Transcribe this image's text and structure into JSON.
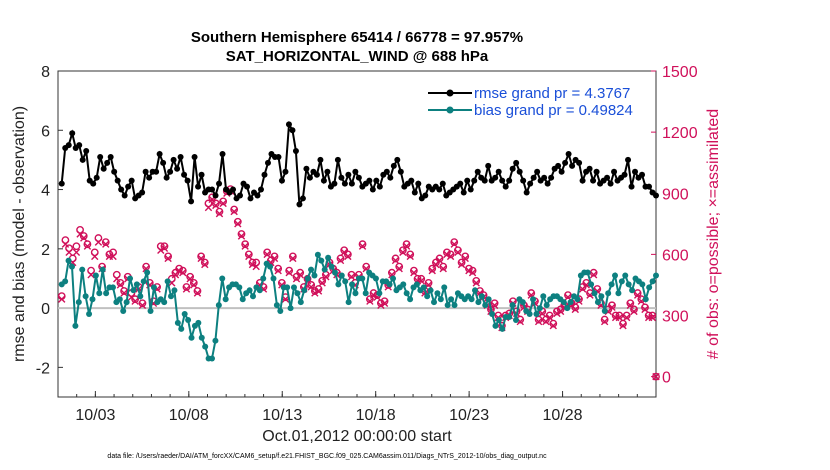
{
  "chart_data": {
    "type": "line",
    "title": "Southern Hemisphere 65414 / 66778 = 97.957%",
    "subtitle": "SAT_HORIZONTAL_WIND @ 688 hPa",
    "xlabel": "Oct.01,2012 00:00:00 start",
    "ylabel": "rmse and bias (model - observation)",
    "ylabel_right": "# of obs: o=possible; ×=assimilated",
    "xlim": [
      1.0,
      33.0
    ],
    "ylim": [
      -3,
      8
    ],
    "ylim_right": [
      -100,
      1500
    ],
    "x_ticks": [
      3,
      8,
      13,
      18,
      23,
      28
    ],
    "x_tick_labels": [
      "10/03",
      "10/08",
      "10/13",
      "10/18",
      "10/23",
      "10/28"
    ],
    "y_ticks": [
      -2,
      0,
      2,
      4,
      6,
      8
    ],
    "y_tick_labels": [
      "-2",
      "0",
      "2",
      "4",
      "6",
      "8"
    ],
    "y_ticks_right": [
      0,
      300,
      600,
      900,
      1200,
      1500
    ],
    "y_tick_labels_right": [
      "0",
      "300",
      "600",
      "900",
      "1200",
      "1500"
    ],
    "zero_line": 0,
    "grid": false,
    "legend_position": "top-right",
    "legend": [
      "rmse grand pr = 4.3767",
      "bias grand pr = 0.49824"
    ],
    "colors": {
      "rmse": "#000000",
      "bias": "#0d8080",
      "obs": "#d0105a",
      "zero": "#c0c0c0"
    },
    "footer": "data file: /Users/raeder/DAI/ATM_forcXX/CAM6_setup/f.e21.FHIST_BGC.f09_025.CAM6assim.011/Diags_NTrS_2012-10/obs_diag_output.nc",
    "series": [
      {
        "name": "rmse grand pr = 4.3767",
        "values": [
          4.2,
          5.4,
          5.5,
          5.9,
          5.4,
          5.5,
          5.0,
          5.3,
          4.3,
          4.2,
          4.4,
          5.1,
          4.7,
          4.9,
          5.1,
          4.6,
          4.3,
          4.0,
          3.8,
          4.1,
          4.3,
          3.7,
          3.8,
          3.9,
          4.6,
          4.4,
          4.6,
          4.6,
          5.2,
          4.9,
          4.4,
          4.6,
          5.0,
          4.7,
          5.1,
          4.5,
          4.3,
          3.6,
          5.1,
          4.1,
          4.5,
          3.9,
          4.0,
          4.0,
          3.8,
          4.2,
          5.2,
          4.0,
          3.9,
          4.0,
          3.7,
          3.8,
          4.2,
          4.1,
          3.7,
          3.9,
          3.8,
          4.0,
          4.5,
          4.9,
          5.2,
          5.1,
          5.1,
          4.3,
          4.6,
          6.2,
          6.0,
          5.3,
          3.5,
          3.7,
          4.7,
          4.4,
          4.6,
          4.5,
          5.0,
          4.3,
          4.6,
          4.1,
          4.2,
          5.0,
          4.4,
          4.2,
          4.5,
          4.2,
          4.6,
          4.4,
          4.1,
          4.2,
          4.3,
          4.0,
          4.3,
          4.1,
          4.5,
          4.6,
          4.4,
          4.8,
          5.0,
          4.6,
          4.1,
          4.2,
          4.3,
          3.9,
          4.2,
          3.7,
          3.8,
          4.1,
          4.0,
          4.1,
          4.0,
          4.2,
          3.8,
          3.9,
          4.0,
          4.1,
          4.2,
          3.9,
          4.3,
          4.0,
          4.3,
          4.6,
          4.4,
          4.3,
          4.8,
          4.3,
          4.4,
          4.6,
          4.3,
          4.1,
          4.3,
          4.7,
          4.9,
          4.6,
          4.3,
          3.9,
          4.2,
          4.4,
          4.6,
          4.3,
          4.4,
          4.2,
          4.4,
          4.7,
          4.8,
          4.6,
          4.9,
          5.2,
          4.8,
          5.0,
          4.9,
          4.3,
          4.6,
          4.7,
          4.3,
          4.6,
          4.2,
          4.3,
          4.4,
          4.2,
          4.6,
          4.3,
          4.4,
          4.5,
          5.0,
          4.1,
          4.6,
          4.4,
          4.5,
          4.1,
          4.1,
          3.9,
          3.8
        ]
      },
      {
        "name": "bias grand pr = 0.49824",
        "values": [
          0.8,
          0.9,
          1.6,
          1.4,
          -0.6,
          0.2,
          1.3,
          0.4,
          -0.2,
          0.3,
          1.1,
          0.5,
          1.3,
          0.5,
          0.7,
          0.7,
          0.2,
          0.3,
          -0.1,
          0.2,
          1.0,
          0.6,
          0.8,
          0.4,
          0.9,
          1.2,
          -0.1,
          0.7,
          0.2,
          0.3,
          0.2,
          0.9,
          0.4,
          0.6,
          -0.5,
          -0.7,
          -0.2,
          -0.4,
          -1.0,
          -0.6,
          -0.5,
          -1.0,
          -1.3,
          -1.7,
          -1.7,
          -1.1,
          0.1,
          1.0,
          0.3,
          0.7,
          0.8,
          0.8,
          0.7,
          0.3,
          0.5,
          0.6,
          0.4,
          0.7,
          0.6,
          1.0,
          1.5,
          1.4,
          1.0,
          0.1,
          -0.1,
          0.7,
          0.7,
          0.0,
          0.7,
          0.5,
          0.2,
          0.6,
          1.0,
          1.3,
          1.1,
          1.8,
          1.6,
          1.3,
          1.7,
          1.4,
          1.2,
          0.8,
          1.1,
          0.9,
          0.2,
          0.8,
          0.5,
          1.0,
          1.0,
          0.5,
          1.2,
          1.1,
          1.0,
          0.5,
          0.9,
          0.9,
          0.8,
          1.0,
          0.6,
          0.7,
          0.8,
          0.5,
          0.3,
          0.7,
          0.8,
          0.6,
          0.7,
          0.4,
          0.6,
          0.2,
          0.5,
          0.3,
          0.7,
          0.1,
          0.3,
          0.1,
          0.5,
          0.4,
          0.3,
          0.4,
          0.3,
          0.6,
          0.2,
          0.4,
          0.1,
          0.3,
          -0.2,
          -0.6,
          -0.4,
          -0.7,
          -0.3,
          -0.3,
          0.1,
          -0.4,
          0.3,
          0.2,
          -0.1,
          -0.2,
          0.3,
          -0.2,
          0.0,
          0.4,
          0.1,
          0.3,
          0.4,
          0.4,
          0.3,
          0.2,
          0.0,
          0.2,
          0.4,
          0.3,
          1.1,
          1.2,
          1.2,
          0.8,
          0.5,
          0.2,
          0.4,
          -0.1,
          0.5,
          0.8,
          1.1,
          0.5,
          0.9,
          1.1,
          0.8,
          0.6,
          1.0,
          0.9,
          0.8,
          0.3,
          0.7,
          0.9,
          1.1
        ]
      }
    ],
    "obs_possible": [
      395,
      670,
      630,
      580,
      640,
      720,
      690,
      650,
      520,
      610,
      680,
      540,
      660,
      600,
      610,
      500,
      460,
      420,
      490,
      410,
      380,
      440,
      360,
      540,
      460,
      370,
      440,
      640,
      640,
      590,
      480,
      510,
      530,
      520,
      440,
      490,
      460,
      420,
      590,
      560,
      850,
      880,
      850,
      810,
      860,
      910,
      920,
      820,
      760,
      700,
      650,
      600,
      560,
      560,
      460,
      440,
      610,
      570,
      590,
      530,
      460,
      390,
      520,
      590,
      490,
      510,
      440,
      480,
      450,
      420,
      430,
      470,
      500,
      560,
      530,
      510,
      580,
      620,
      600,
      500,
      460,
      500,
      650,
      540,
      380,
      410,
      400,
      360,
      370,
      450,
      510,
      580,
      540,
      620,
      650,
      600,
      520,
      480,
      480,
      420,
      460,
      530,
      560,
      580,
      540,
      610,
      600,
      660,
      620,
      560,
      590,
      530,
      520,
      470,
      420,
      400,
      360,
      330,
      360,
      300,
      250,
      300,
      310,
      370,
      320,
      280,
      350,
      330,
      410,
      370,
      280,
      320,
      280,
      300,
      260,
      320,
      330,
      350,
      400,
      360,
      340,
      380,
      440,
      460,
      410,
      510,
      430,
      360,
      280,
      330,
      350,
      300,
      300,
      260,
      300,
      360,
      330,
      410,
      380,
      340,
      300,
      300,
      0
    ],
    "obs_assimilated": [
      380,
      650,
      610,
      560,
      610,
      700,
      680,
      640,
      500,
      590,
      660,
      530,
      650,
      590,
      590,
      480,
      450,
      410,
      480,
      390,
      370,
      430,
      350,
      530,
      450,
      360,
      430,
      620,
      630,
      580,
      460,
      500,
      520,
      510,
      430,
      480,
      450,
      410,
      580,
      550,
      830,
      870,
      840,
      800,
      850,
      900,
      910,
      810,
      750,
      690,
      640,
      590,
      550,
      540,
      450,
      430,
      600,
      560,
      580,
      520,
      450,
      380,
      510,
      580,
      480,
      500,
      430,
      470,
      440,
      410,
      420,
      460,
      490,
      550,
      520,
      500,
      570,
      610,
      590,
      490,
      450,
      490,
      640,
      530,
      370,
      400,
      390,
      350,
      360,
      440,
      500,
      570,
      530,
      610,
      640,
      590,
      510,
      470,
      470,
      410,
      450,
      520,
      550,
      570,
      530,
      600,
      590,
      650,
      610,
      550,
      580,
      520,
      510,
      460,
      410,
      390,
      350,
      320,
      350,
      290,
      240,
      290,
      300,
      360,
      310,
      270,
      340,
      320,
      400,
      360,
      270,
      310,
      270,
      290,
      250,
      310,
      320,
      340,
      390,
      350,
      330,
      370,
      430,
      450,
      400,
      500,
      420,
      350,
      270,
      320,
      340,
      290,
      290,
      250,
      290,
      350,
      320,
      400,
      370,
      330,
      290,
      290,
      0
    ]
  }
}
